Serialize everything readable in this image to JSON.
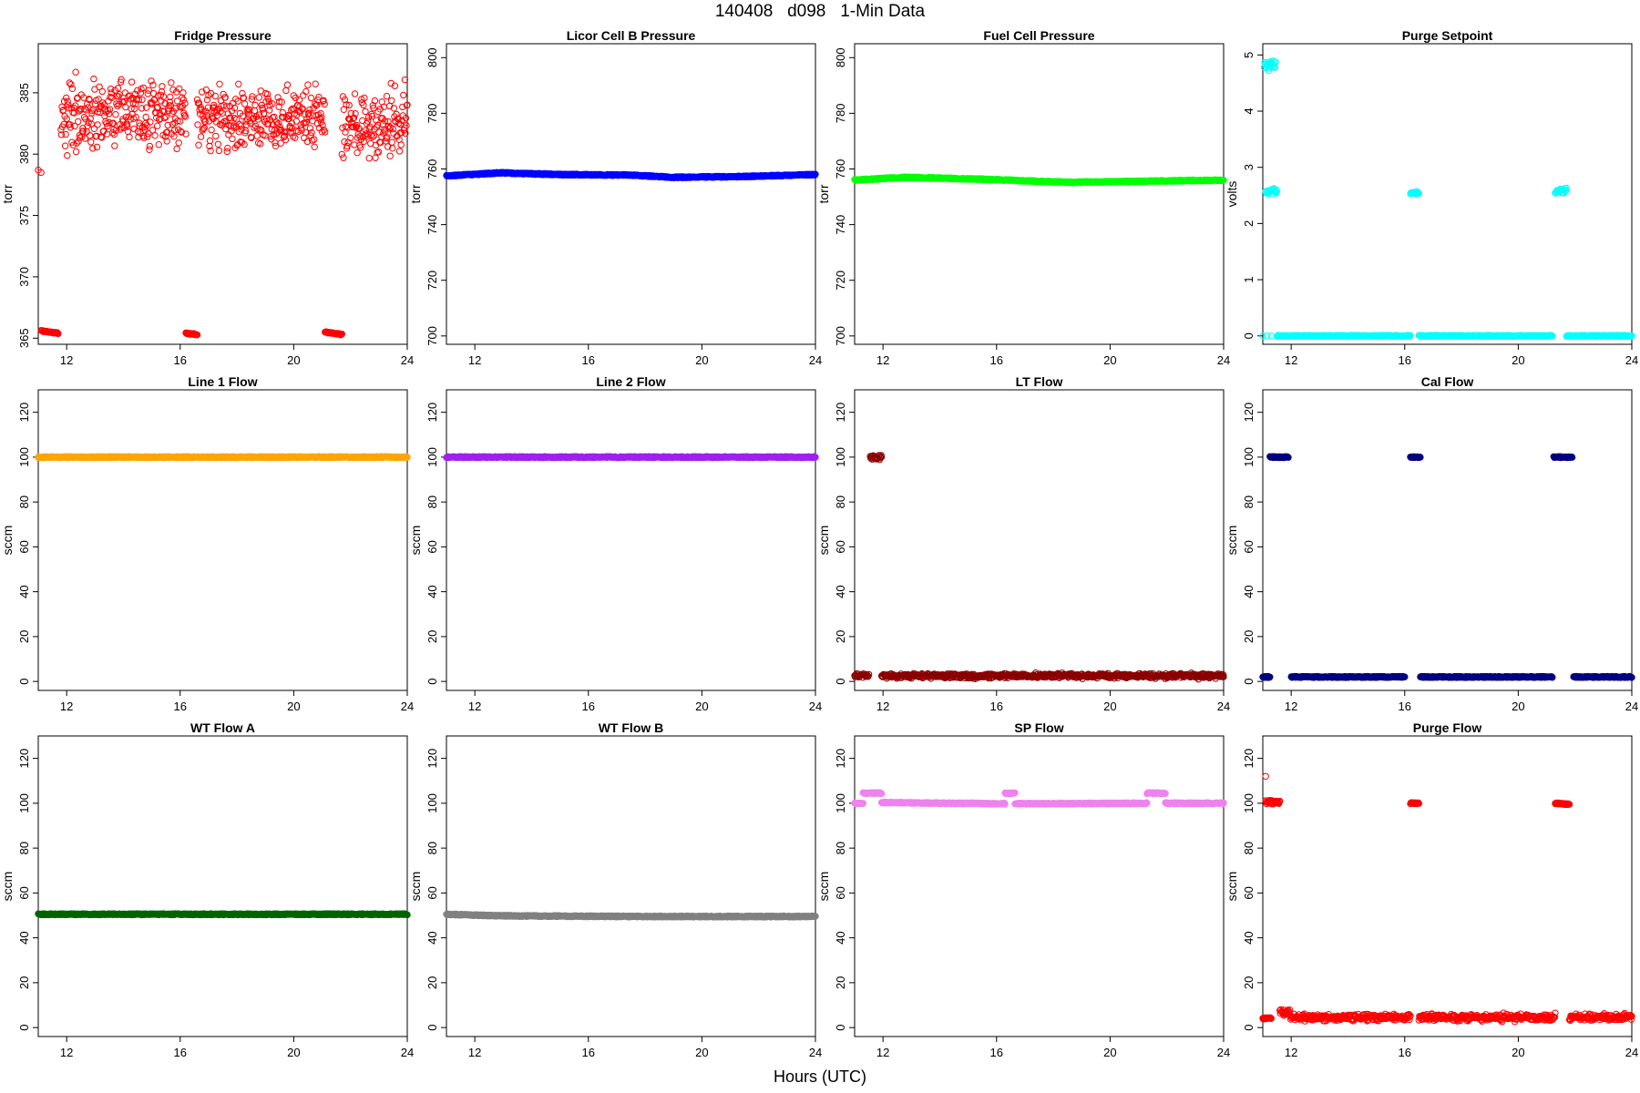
{
  "figure": {
    "title": "140408   d098   1-Min Data",
    "xlabel": "Hours (UTC)"
  },
  "chart_data": [
    {
      "type": "scatter",
      "title": "Fridge Pressure",
      "ylabel": "torr",
      "color": "#ff0000",
      "marker": "open-circle",
      "xlim": [
        11,
        24
      ],
      "xticks": [
        12,
        16,
        20,
        24
      ],
      "ylim": [
        364.5,
        389
      ],
      "yticks": [
        365,
        370,
        375,
        380,
        385
      ],
      "segments": [
        {
          "x": [
            11.0,
            11.1
          ],
          "y": [
            378.7,
            378.5
          ]
        },
        {
          "x": [
            11.1,
            11.7
          ],
          "y": [
            365.6,
            365.4
          ],
          "dense": true
        },
        {
          "x": [
            11.8,
            16.2
          ],
          "y": [
            383.0,
            383.0
          ],
          "scatter": [
            377.8,
            388.6
          ]
        },
        {
          "x": [
            16.2,
            16.6
          ],
          "y": [
            365.4,
            365.3
          ],
          "dense": true
        },
        {
          "x": [
            16.6,
            21.1
          ],
          "y": [
            382.5,
            382.5
          ],
          "scatter": [
            378.2,
            388.0
          ]
        },
        {
          "x": [
            21.1,
            21.7
          ],
          "y": [
            365.5,
            365.3
          ],
          "dense": true
        },
        {
          "x": [
            21.7,
            24.0
          ],
          "y": [
            382.0,
            382.0
          ],
          "scatter": [
            377.0,
            387.8
          ]
        }
      ]
    },
    {
      "type": "scatter",
      "title": "Licor Cell B Pressure",
      "ylabel": "torr",
      "color": "#0000ff",
      "marker": "open-circle",
      "xlim": [
        11,
        24
      ],
      "xticks": [
        12,
        16,
        20,
        24
      ],
      "ylim": [
        697,
        805
      ],
      "yticks": [
        700,
        720,
        740,
        760,
        780,
        800
      ],
      "segments": [
        {
          "x": [
            11.0,
            12.9,
            15.0,
            17.5,
            19.0,
            21.5,
            24.0
          ],
          "y": [
            757.5,
            758.6,
            758.0,
            757.8,
            757.0,
            757.3,
            758.0
          ],
          "dense": true
        }
      ]
    },
    {
      "type": "scatter",
      "title": "Fuel Cell Pressure",
      "ylabel": "torr",
      "color": "#00ff00",
      "marker": "open-circle",
      "xlim": [
        11,
        24
      ],
      "xticks": [
        12,
        16,
        20,
        24
      ],
      "ylim": [
        697,
        805
      ],
      "yticks": [
        700,
        720,
        740,
        760,
        780,
        800
      ],
      "segments": [
        {
          "x": [
            11.0,
            12.8,
            15.5,
            18.5,
            20.5,
            24.0
          ],
          "y": [
            756.0,
            757.0,
            756.3,
            755.2,
            755.5,
            756.0
          ],
          "dense": true
        }
      ]
    },
    {
      "type": "scatter",
      "title": "Purge Setpoint",
      "ylabel": "volts",
      "color": "#00ffff",
      "marker": "open-circle",
      "xlim": [
        11,
        24
      ],
      "xticks": [
        12,
        16,
        20,
        24
      ],
      "ylim": [
        -0.15,
        5.2
      ],
      "yticks": [
        0,
        1,
        2,
        3,
        4,
        5
      ],
      "segments": [
        {
          "x": [
            11.0,
            11.3
          ],
          "y": [
            0.0,
            0.0
          ],
          "count": 3
        },
        {
          "x": [
            11.05,
            11.45
          ],
          "y": [
            4.95,
            4.9
          ],
          "scatter": [
            4.6,
            5.0
          ]
        },
        {
          "x": [
            11.1,
            11.5
          ],
          "y": [
            2.55,
            2.55
          ],
          "scatter": [
            2.48,
            2.68
          ]
        },
        {
          "x": [
            11.5,
            16.2
          ],
          "y": [
            0.0,
            0.0
          ],
          "dense": true
        },
        {
          "x": [
            16.2,
            16.5
          ],
          "y": [
            2.55,
            2.53
          ],
          "scatter": [
            2.5,
            2.6
          ]
        },
        {
          "x": [
            16.5,
            21.2
          ],
          "y": [
            0.0,
            0.0
          ],
          "dense": true
        },
        {
          "x": [
            21.3,
            21.7
          ],
          "y": [
            2.52,
            2.64
          ],
          "scatter": [
            2.5,
            2.66
          ]
        },
        {
          "x": [
            21.7,
            24.0
          ],
          "y": [
            0.0,
            0.0
          ],
          "dense": true
        }
      ]
    },
    {
      "type": "scatter",
      "title": "Line 1 Flow",
      "ylabel": "sccm",
      "color": "#ffa500",
      "marker": "open-circle",
      "xlim": [
        11,
        24
      ],
      "xticks": [
        12,
        16,
        20,
        24
      ],
      "ylim": [
        -4,
        130
      ],
      "yticks": [
        0,
        20,
        40,
        60,
        80,
        100,
        120
      ],
      "segments": [
        {
          "x": [
            11.0,
            24.0
          ],
          "y": [
            100.0,
            100.0
          ],
          "dense": true
        }
      ]
    },
    {
      "type": "scatter",
      "title": "Line 2 Flow",
      "ylabel": "sccm",
      "color": "#a020f0",
      "marker": "open-circle",
      "xlim": [
        11,
        24
      ],
      "xticks": [
        12,
        16,
        20,
        24
      ],
      "ylim": [
        -4,
        130
      ],
      "yticks": [
        0,
        20,
        40,
        60,
        80,
        100,
        120
      ],
      "segments": [
        {
          "x": [
            11.0,
            24.0
          ],
          "y": [
            100.0,
            100.0
          ],
          "dense": true
        }
      ]
    },
    {
      "type": "scatter",
      "title": "LT Flow",
      "ylabel": "sccm",
      "color": "#8b0000",
      "marker": "open-circle",
      "xlim": [
        11,
        24
      ],
      "xticks": [
        12,
        16,
        20,
        24
      ],
      "ylim": [
        -4,
        130
      ],
      "yticks": [
        0,
        20,
        40,
        60,
        80,
        100,
        120
      ],
      "segments": [
        {
          "x": [
            11.0,
            11.5
          ],
          "y": [
            3.0,
            3.0
          ],
          "scatter": [
            1.0,
            4.0
          ]
        },
        {
          "x": [
            11.55,
            11.95
          ],
          "y": [
            100.0,
            99.5
          ],
          "scatter": [
            97.0,
            102.0
          ]
        },
        {
          "x": [
            11.95,
            24.0
          ],
          "y": [
            2.5,
            2.5
          ],
          "scatter": [
            0.5,
            4.5
          ]
        }
      ]
    },
    {
      "type": "scatter",
      "title": "Cal Flow",
      "ylabel": "sccm",
      "color": "#000080",
      "marker": "open-circle",
      "xlim": [
        11,
        24
      ],
      "xticks": [
        12,
        16,
        20,
        24
      ],
      "ylim": [
        -4,
        130
      ],
      "yticks": [
        0,
        20,
        40,
        60,
        80,
        100,
        120
      ],
      "segments": [
        {
          "x": [
            11.0,
            11.25
          ],
          "y": [
            2.0,
            2.0
          ],
          "dense": true
        },
        {
          "x": [
            11.25,
            11.9
          ],
          "y": [
            100.0,
            100.0
          ],
          "dense": true
        },
        {
          "x": [
            12.0,
            16.0
          ],
          "y": [
            2.0,
            2.0
          ],
          "dense": true
        },
        {
          "x": [
            16.2,
            16.55
          ],
          "y": [
            100.0,
            100.0
          ],
          "dense": true
        },
        {
          "x": [
            16.55,
            21.2
          ],
          "y": [
            2.0,
            2.0
          ],
          "dense": true
        },
        {
          "x": [
            21.25,
            21.9
          ],
          "y": [
            100.0,
            100.0
          ],
          "dense": true
        },
        {
          "x": [
            21.95,
            24.0
          ],
          "y": [
            2.0,
            2.0
          ],
          "dense": true
        }
      ]
    },
    {
      "type": "scatter",
      "title": "WT Flow A",
      "ylabel": "sccm",
      "color": "#006400",
      "marker": "open-circle",
      "xlim": [
        11,
        24
      ],
      "xticks": [
        12,
        16,
        20,
        24
      ],
      "ylim": [
        -4,
        130
      ],
      "yticks": [
        0,
        20,
        40,
        60,
        80,
        100,
        120
      ],
      "segments": [
        {
          "x": [
            11.0,
            24.0
          ],
          "y": [
            50.5,
            50.5
          ],
          "dense": true
        }
      ]
    },
    {
      "type": "scatter",
      "title": "WT Flow B",
      "ylabel": "sccm",
      "color": "#808080",
      "marker": "open-circle",
      "xlim": [
        11,
        24
      ],
      "xticks": [
        12,
        16,
        20,
        24
      ],
      "ylim": [
        -4,
        130
      ],
      "yticks": [
        0,
        20,
        40,
        60,
        80,
        100,
        120
      ],
      "segments": [
        {
          "x": [
            11.0,
            13.0,
            18.0,
            24.0
          ],
          "y": [
            50.5,
            49.8,
            49.5,
            49.5
          ],
          "dense": true
        }
      ]
    },
    {
      "type": "scatter",
      "title": "SP Flow",
      "ylabel": "sccm",
      "color": "#ee82ee",
      "marker": "open-circle",
      "xlim": [
        11,
        24
      ],
      "xticks": [
        12,
        16,
        20,
        24
      ],
      "ylim": [
        -4,
        130
      ],
      "yticks": [
        0,
        20,
        40,
        60,
        80,
        100,
        120
      ],
      "segments": [
        {
          "x": [
            11.0,
            11.3
          ],
          "y": [
            100.0,
            100.0
          ],
          "dense": true
        },
        {
          "x": [
            11.3,
            11.95
          ],
          "y": [
            104.5,
            104.5
          ],
          "dense": true
        },
        {
          "x": [
            11.95,
            16.3
          ],
          "y": [
            100.3,
            99.8
          ],
          "dense": true
        },
        {
          "x": [
            16.3,
            16.65
          ],
          "y": [
            104.5,
            104.5
          ],
          "dense": true
        },
        {
          "x": [
            16.65,
            21.3
          ],
          "y": [
            99.8,
            100.0
          ],
          "dense": true
        },
        {
          "x": [
            21.3,
            21.95
          ],
          "y": [
            104.5,
            104.5
          ],
          "dense": true
        },
        {
          "x": [
            21.95,
            24.0
          ],
          "y": [
            100.0,
            100.0
          ],
          "dense": true
        }
      ]
    },
    {
      "type": "scatter",
      "title": "Purge Flow",
      "ylabel": "sccm",
      "color": "#ff0000",
      "marker": "open-circle",
      "xlim": [
        11,
        24
      ],
      "xticks": [
        12,
        16,
        20,
        24
      ],
      "ylim": [
        -4,
        130
      ],
      "yticks": [
        0,
        20,
        40,
        60,
        80,
        100,
        120
      ],
      "segments": [
        {
          "x": [
            11.0,
            11.3
          ],
          "y": [
            4.0,
            4.0
          ],
          "scatter": [
            3.0,
            5.0
          ]
        },
        {
          "x": [
            11.1,
            11.2
          ],
          "y": [
            112.0,
            112.0
          ],
          "count": 1
        },
        {
          "x": [
            11.1,
            11.6
          ],
          "y": [
            100.0,
            100.0
          ],
          "scatter": [
            98.5,
            103.0
          ]
        },
        {
          "x": [
            11.6,
            11.95
          ],
          "y": [
            7.0,
            6.5
          ],
          "scatter": [
            4.5,
            9.0
          ]
        },
        {
          "x": [
            11.95,
            16.2
          ],
          "y": [
            4.5,
            4.5
          ],
          "scatter": [
            1.5,
            7.5
          ]
        },
        {
          "x": [
            16.2,
            16.5
          ],
          "y": [
            100.0,
            100.0
          ],
          "dense": true
        },
        {
          "x": [
            16.5,
            21.3
          ],
          "y": [
            4.5,
            4.5
          ],
          "scatter": [
            1.5,
            7.5
          ]
        },
        {
          "x": [
            21.3,
            21.8
          ],
          "y": [
            100.0,
            99.5
          ],
          "dense": true
        },
        {
          "x": [
            21.8,
            24.0
          ],
          "y": [
            4.5,
            4.5
          ],
          "scatter": [
            1.5,
            7.5
          ]
        }
      ]
    }
  ]
}
